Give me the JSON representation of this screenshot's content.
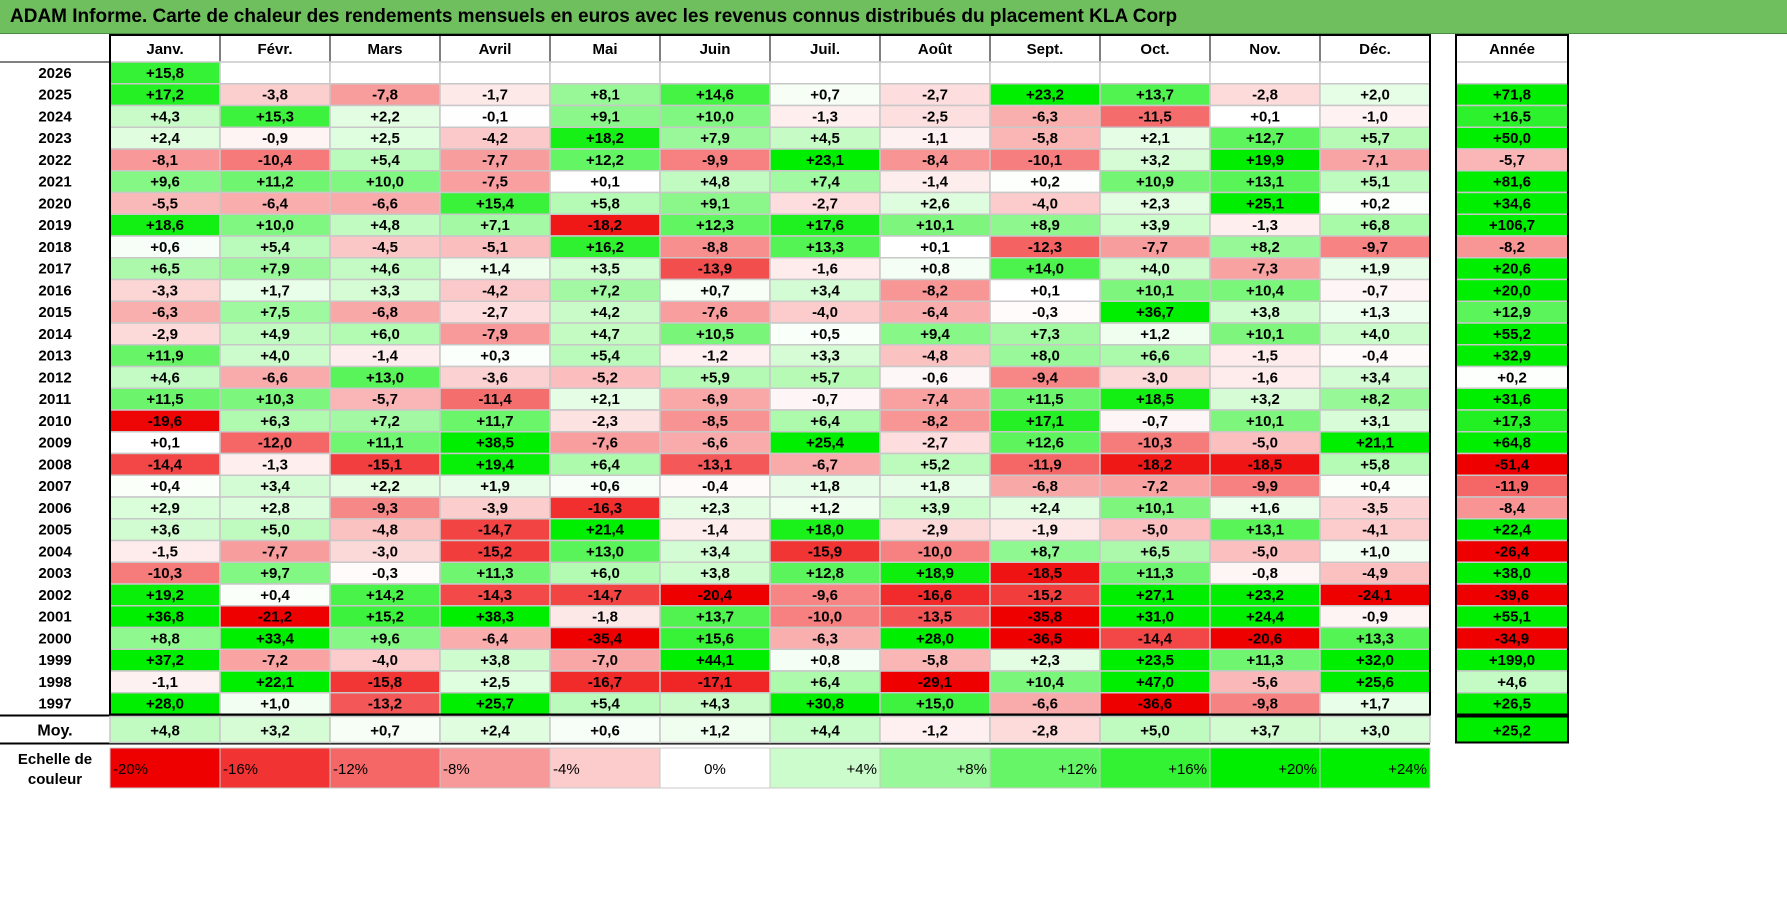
{
  "title": "ADAM Informe. Carte de chaleur des rendements mensuels en euros avec les revenus connus distribués du placement KLA Corp",
  "chart_data": {
    "type": "heatmap",
    "title": "ADAM Informe. Carte de chaleur des rendements mensuels en euros avec les revenus connus distribués du placement KLA Corp",
    "months": [
      "Janv.",
      "Févr.",
      "Mars",
      "Avril",
      "Mai",
      "Juin",
      "Juil.",
      "Août",
      "Sept.",
      "Oct.",
      "Nov.",
      "Déc."
    ],
    "annual_label": "Année",
    "avg_label": "Moy.",
    "rows": [
      {
        "year": "2026",
        "values": [
          "+15,8",
          "",
          "",
          "",
          "",
          "",
          "",
          "",
          "",
          "",
          "",
          ""
        ],
        "annual": ""
      },
      {
        "year": "2025",
        "values": [
          "+17,2",
          "-3,8",
          "-7,8",
          "-1,7",
          "+8,1",
          "+14,6",
          "+0,7",
          "-2,7",
          "+23,2",
          "+13,7",
          "-2,8",
          "+2,0"
        ],
        "annual": "+71,8"
      },
      {
        "year": "2024",
        "values": [
          "+4,3",
          "+15,3",
          "+2,2",
          "-0,1",
          "+9,1",
          "+10,0",
          "-1,3",
          "-2,5",
          "-6,3",
          "-11,5",
          "+0,1",
          "-1,0"
        ],
        "annual": "+16,5"
      },
      {
        "year": "2023",
        "values": [
          "+2,4",
          "-0,9",
          "+2,5",
          "-4,2",
          "+18,2",
          "+7,9",
          "+4,5",
          "-1,1",
          "-5,8",
          "+2,1",
          "+12,7",
          "+5,7"
        ],
        "annual": "+50,0"
      },
      {
        "year": "2022",
        "values": [
          "-8,1",
          "-10,4",
          "+5,4",
          "-7,7",
          "+12,2",
          "-9,9",
          "+23,1",
          "-8,4",
          "-10,1",
          "+3,2",
          "+19,9",
          "-7,1"
        ],
        "annual": "-5,7"
      },
      {
        "year": "2021",
        "values": [
          "+9,6",
          "+11,2",
          "+10,0",
          "-7,5",
          "+0,1",
          "+4,8",
          "+7,4",
          "-1,4",
          "+0,2",
          "+10,9",
          "+13,1",
          "+5,1"
        ],
        "annual": "+81,6"
      },
      {
        "year": "2020",
        "values": [
          "-5,5",
          "-6,4",
          "-6,6",
          "+15,4",
          "+5,8",
          "+9,1",
          "-2,7",
          "+2,6",
          "-4,0",
          "+2,3",
          "+25,1",
          "+0,2"
        ],
        "annual": "+34,6"
      },
      {
        "year": "2019",
        "values": [
          "+18,6",
          "+10,0",
          "+4,8",
          "+7,1",
          "-18,2",
          "+12,3",
          "+17,6",
          "+10,1",
          "+8,9",
          "+3,9",
          "-1,3",
          "+6,8"
        ],
        "annual": "+106,7"
      },
      {
        "year": "2018",
        "values": [
          "+0,6",
          "+5,4",
          "-4,5",
          "-5,1",
          "+16,2",
          "-8,8",
          "+13,3",
          "+0,1",
          "-12,3",
          "-7,7",
          "+8,2",
          "-9,7"
        ],
        "annual": "-8,2"
      },
      {
        "year": "2017",
        "values": [
          "+6,5",
          "+7,9",
          "+4,6",
          "+1,4",
          "+3,5",
          "-13,9",
          "-1,6",
          "+0,8",
          "+14,0",
          "+4,0",
          "-7,3",
          "+1,9"
        ],
        "annual": "+20,6"
      },
      {
        "year": "2016",
        "values": [
          "-3,3",
          "+1,7",
          "+3,3",
          "-4,2",
          "+7,2",
          "+0,7",
          "+3,4",
          "-8,2",
          "+0,1",
          "+10,1",
          "+10,4",
          "-0,7"
        ],
        "annual": "+20,0"
      },
      {
        "year": "2015",
        "values": [
          "-6,3",
          "+7,5",
          "-6,8",
          "-2,7",
          "+4,2",
          "-7,6",
          "-4,0",
          "-6,4",
          "-0,3",
          "+36,7",
          "+3,8",
          "+1,3"
        ],
        "annual": "+12,9"
      },
      {
        "year": "2014",
        "values": [
          "-2,9",
          "+4,9",
          "+6,0",
          "-7,9",
          "+4,7",
          "+10,5",
          "+0,5",
          "+9,4",
          "+7,3",
          "+1,2",
          "+10,1",
          "+4,0"
        ],
        "annual": "+55,2"
      },
      {
        "year": "2013",
        "values": [
          "+11,9",
          "+4,0",
          "-1,4",
          "+0,3",
          "+5,4",
          "-1,2",
          "+3,3",
          "-4,8",
          "+8,0",
          "+6,6",
          "-1,5",
          "-0,4"
        ],
        "annual": "+32,9"
      },
      {
        "year": "2012",
        "values": [
          "+4,6",
          "-6,6",
          "+13,0",
          "-3,6",
          "-5,2",
          "+5,9",
          "+5,7",
          "-0,6",
          "-9,4",
          "-3,0",
          "-1,6",
          "+3,4"
        ],
        "annual": "+0,2"
      },
      {
        "year": "2011",
        "values": [
          "+11,5",
          "+10,3",
          "-5,7",
          "-11,4",
          "+2,1",
          "-6,9",
          "-0,7",
          "-7,4",
          "+11,5",
          "+18,5",
          "+3,2",
          "+8,2"
        ],
        "annual": "+31,6"
      },
      {
        "year": "2010",
        "values": [
          "-19,6",
          "+6,3",
          "+7,2",
          "+11,7",
          "-2,3",
          "-8,5",
          "+6,4",
          "-8,2",
          "+17,1",
          "-0,7",
          "+10,1",
          "+3,1"
        ],
        "annual": "+17,3"
      },
      {
        "year": "2009",
        "values": [
          "+0,1",
          "-12,0",
          "+11,1",
          "+38,5",
          "-7,6",
          "-6,6",
          "+25,4",
          "-2,7",
          "+12,6",
          "-10,3",
          "-5,0",
          "+21,1"
        ],
        "annual": "+64,8"
      },
      {
        "year": "2008",
        "values": [
          "-14,4",
          "-1,3",
          "-15,1",
          "+19,4",
          "+6,4",
          "-13,1",
          "-6,7",
          "+5,2",
          "-11,9",
          "-18,2",
          "-18,5",
          "+5,8"
        ],
        "annual": "-51,4"
      },
      {
        "year": "2007",
        "values": [
          "+0,4",
          "+3,4",
          "+2,2",
          "+1,9",
          "+0,6",
          "-0,4",
          "+1,8",
          "+1,8",
          "-6,8",
          "-7,2",
          "-9,9",
          "+0,4"
        ],
        "annual": "-11,9"
      },
      {
        "year": "2006",
        "values": [
          "+2,9",
          "+2,8",
          "-9,3",
          "-3,9",
          "-16,3",
          "+2,3",
          "+1,2",
          "+3,9",
          "+2,4",
          "+10,1",
          "+1,6",
          "-3,5"
        ],
        "annual": "-8,4"
      },
      {
        "year": "2005",
        "values": [
          "+3,6",
          "+5,0",
          "-4,8",
          "-14,7",
          "+21,4",
          "-1,4",
          "+18,0",
          "-2,9",
          "-1,9",
          "-5,0",
          "+13,1",
          "-4,1"
        ],
        "annual": "+22,4"
      },
      {
        "year": "2004",
        "values": [
          "-1,5",
          "-7,7",
          "-3,0",
          "-15,2",
          "+13,0",
          "+3,4",
          "-15,9",
          "-10,0",
          "+8,7",
          "+6,5",
          "-5,0",
          "+1,0"
        ],
        "annual": "-26,4"
      },
      {
        "year": "2003",
        "values": [
          "-10,3",
          "+9,7",
          "-0,3",
          "+11,3",
          "+6,0",
          "+3,8",
          "+12,8",
          "+18,9",
          "-18,5",
          "+11,3",
          "-0,8",
          "-4,9"
        ],
        "annual": "+38,0"
      },
      {
        "year": "2002",
        "values": [
          "+19,2",
          "+0,4",
          "+14,2",
          "-14,3",
          "-14,7",
          "-20,4",
          "-9,6",
          "-16,6",
          "-15,2",
          "+27,1",
          "+23,2",
          "-24,1"
        ],
        "annual": "-39,6"
      },
      {
        "year": "2001",
        "values": [
          "+36,8",
          "-21,2",
          "+15,2",
          "+38,3",
          "-1,8",
          "+13,7",
          "-10,0",
          "-13,5",
          "-35,8",
          "+31,0",
          "+24,4",
          "-0,9"
        ],
        "annual": "+55,1"
      },
      {
        "year": "2000",
        "values": [
          "+8,8",
          "+33,4",
          "+9,6",
          "-6,4",
          "-35,4",
          "+15,6",
          "-6,3",
          "+28,0",
          "-36,5",
          "-14,4",
          "-20,6",
          "+13,3"
        ],
        "annual": "-34,9"
      },
      {
        "year": "1999",
        "values": [
          "+37,2",
          "-7,2",
          "-4,0",
          "+3,8",
          "-7,0",
          "+44,1",
          "+0,8",
          "-5,8",
          "+2,3",
          "+23,5",
          "+11,3",
          "+32,0"
        ],
        "annual": "+199,0"
      },
      {
        "year": "1998",
        "values": [
          "-1,1",
          "+22,1",
          "-15,8",
          "+2,5",
          "-16,7",
          "-17,1",
          "+6,4",
          "-29,1",
          "+10,4",
          "+47,0",
          "-5,6",
          "+25,6"
        ],
        "annual": "+4,6"
      },
      {
        "year": "1997",
        "values": [
          "+28,0",
          "+1,0",
          "-13,2",
          "+25,7",
          "+5,4",
          "+4,3",
          "+30,8",
          "+15,0",
          "-6,6",
          "-36,6",
          "-9,8",
          "+1,7"
        ],
        "annual": "+26,5"
      }
    ],
    "average": {
      "values": [
        "+4,8",
        "+3,2",
        "+0,7",
        "+2,4",
        "+0,6",
        "+1,2",
        "+4,4",
        "-1,2",
        "-2,8",
        "+5,0",
        "+3,7",
        "+3,0"
      ],
      "annual": "+25,2"
    },
    "scale_label": [
      "Echelle de",
      "couleur"
    ],
    "scale": [
      "-20%",
      "-16%",
      "-12%",
      "-8%",
      "-4%",
      "0%",
      "+4%",
      "+8%",
      "+12%",
      "+16%",
      "+20%",
      "+24%"
    ]
  }
}
